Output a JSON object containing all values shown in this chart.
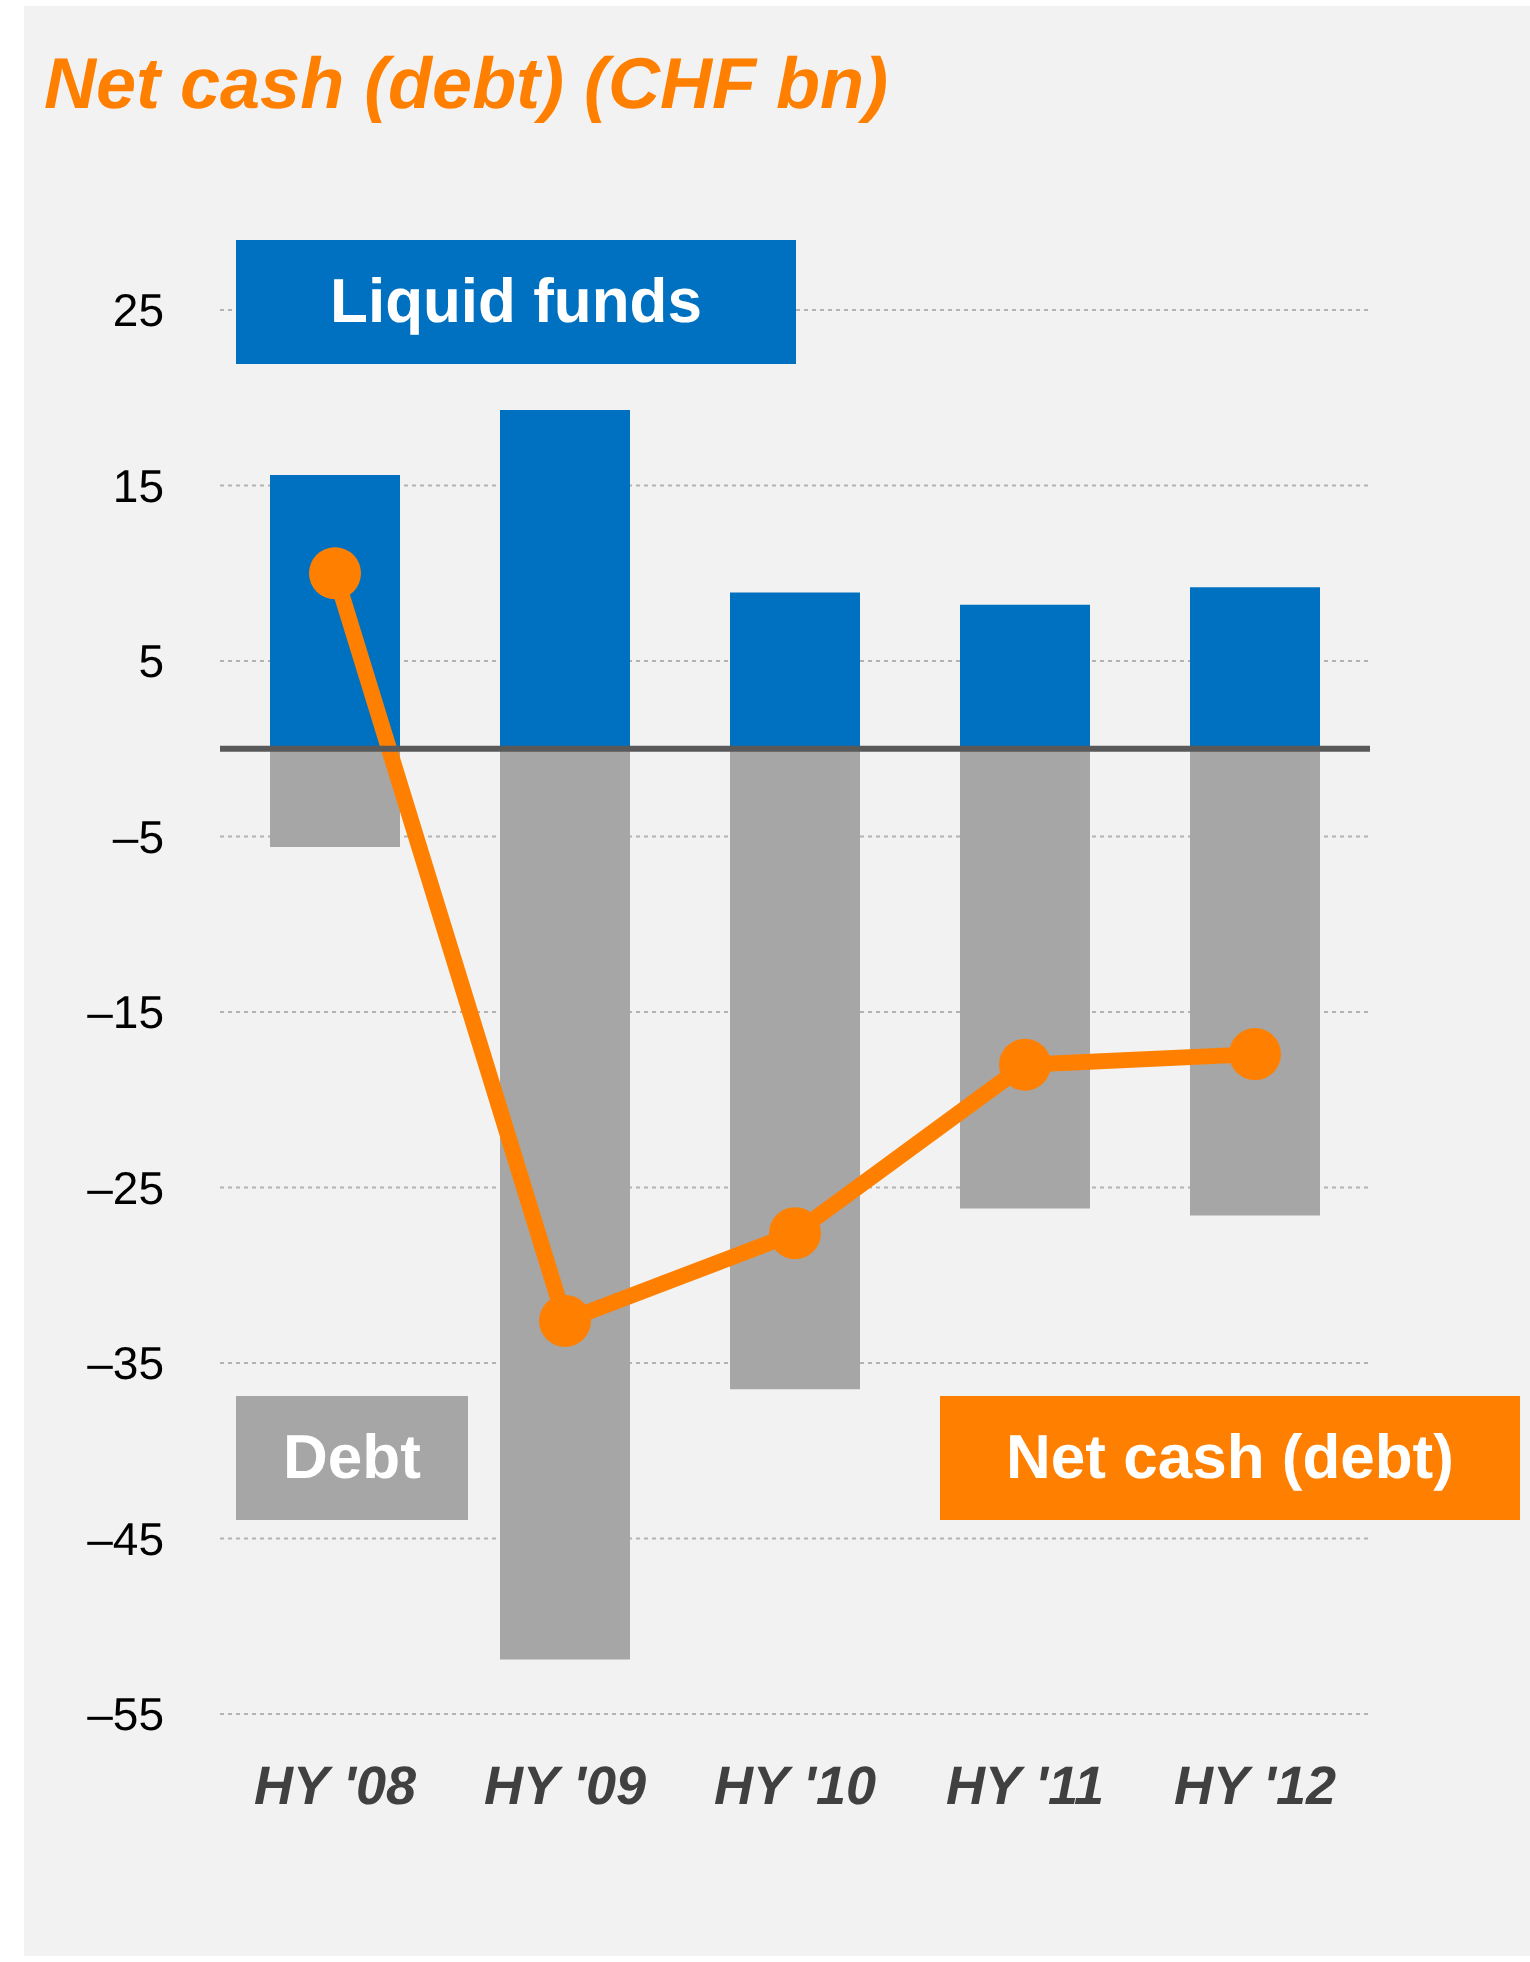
{
  "chart_data": {
    "type": "bar",
    "title": "Net cash (debt) (CHF bn)",
    "categories": [
      "HY '08",
      "HY '09",
      "HY '10",
      "HY '11",
      "HY '12"
    ],
    "stacked": true,
    "series": [
      {
        "name": "Liquid funds",
        "color": "#0070c0",
        "values": [
          15.6,
          19.3,
          8.9,
          8.2,
          9.2
        ]
      },
      {
        "name": "Debt",
        "color": "#a6a6a6",
        "values": [
          -5.6,
          -51.9,
          -36.5,
          -26.2,
          -26.6
        ]
      },
      {
        "name": "Net cash (debt)",
        "type": "line",
        "color": "#ff8000",
        "values": [
          10.0,
          -32.6,
          -27.6,
          -18.0,
          -17.4
        ]
      }
    ],
    "marker": "circle",
    "ylim": [
      -55,
      25
    ],
    "yticks": [
      {
        "value": -55,
        "label": "–55"
      },
      {
        "value": -45,
        "label": "–45"
      },
      {
        "value": -35,
        "label": "–35"
      },
      {
        "value": -25,
        "label": "–25"
      },
      {
        "value": -15,
        "label": "–15"
      },
      {
        "value": -5,
        "label": "–5"
      },
      5,
      15,
      25
    ],
    "grid": "y",
    "ref_lines": [
      {
        "axis": "y",
        "value": 0,
        "color": "#595959"
      }
    ]
  }
}
